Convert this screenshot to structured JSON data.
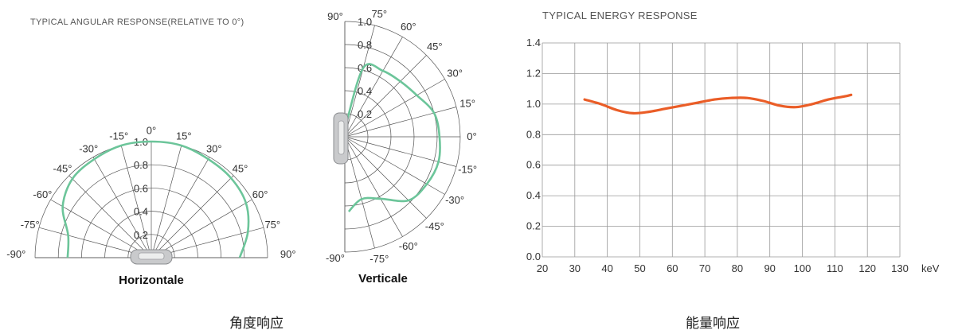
{
  "chart_data": [
    {
      "type": "polar",
      "title": "TYPICAL ANGULAR RESPONSE(RELATIVE TO 0°)",
      "name": "Horizontale",
      "radial_ticks": [
        "0.2",
        "0.4",
        "0.6",
        "0.8",
        "1.0"
      ],
      "angle_labels": [
        "-90",
        "-75",
        "-60",
        "-45",
        "-30",
        "-15",
        "0",
        "15",
        "30",
        "45",
        "60",
        "75",
        "90"
      ],
      "degree_symbol": "°",
      "series": {
        "angle": [
          -90,
          -75,
          -60,
          -45,
          -30,
          -15,
          0,
          15,
          30,
          45,
          60,
          75,
          90
        ],
        "value": [
          0.72,
          0.74,
          0.88,
          0.96,
          0.98,
          1.0,
          1.0,
          1.0,
          0.98,
          0.97,
          0.94,
          0.86,
          0.76
        ]
      },
      "color": "#6cc59a"
    },
    {
      "type": "polar",
      "name": "Verticale",
      "radial_ticks": [
        "0.2",
        "0.4",
        "0.6",
        "0.8",
        "1.0"
      ],
      "angle_labels": [
        "90",
        "75",
        "60",
        "45",
        "30",
        "15",
        "0",
        "-15",
        "-30",
        "-45",
        "-60",
        "-75",
        "-90"
      ],
      "degree_symbol": "°",
      "series": {
        "angle": [
          85,
          75,
          60,
          45,
          30,
          15,
          0,
          -15,
          -30,
          -45,
          -60,
          -75,
          -87
        ],
        "value": [
          0.1,
          0.62,
          0.66,
          0.68,
          0.72,
          0.8,
          0.82,
          0.84,
          0.82,
          0.78,
          0.62,
          0.56,
          0.65
        ]
      },
      "color": "#6cc59a"
    },
    {
      "type": "line",
      "title": "TYPICAL ENERGY RESPONSE",
      "x_ticks": [
        "20",
        "30",
        "40",
        "50",
        "60",
        "70",
        "80",
        "90",
        "100",
        "110",
        "120",
        "130"
      ],
      "x_unit": "keV",
      "y_ticks": [
        "0.0",
        "0.2",
        "0.4",
        "0.6",
        "0.8",
        "1.0",
        "1.2",
        "1.4"
      ],
      "xlim": [
        20,
        130
      ],
      "ylim": [
        0,
        1.4
      ],
      "series": {
        "x": [
          33,
          38,
          43,
          48,
          53,
          58,
          63,
          68,
          73,
          78,
          83,
          88,
          93,
          98,
          103,
          108,
          113,
          115
        ],
        "y": [
          1.03,
          1.0,
          0.96,
          0.94,
          0.95,
          0.97,
          0.99,
          1.01,
          1.03,
          1.04,
          1.04,
          1.02,
          0.99,
          0.98,
          1.0,
          1.03,
          1.05,
          1.06
        ]
      },
      "color": "#ea5d27",
      "grid": true
    }
  ],
  "captions": {
    "left": "角度响应",
    "right": "能量响应"
  }
}
